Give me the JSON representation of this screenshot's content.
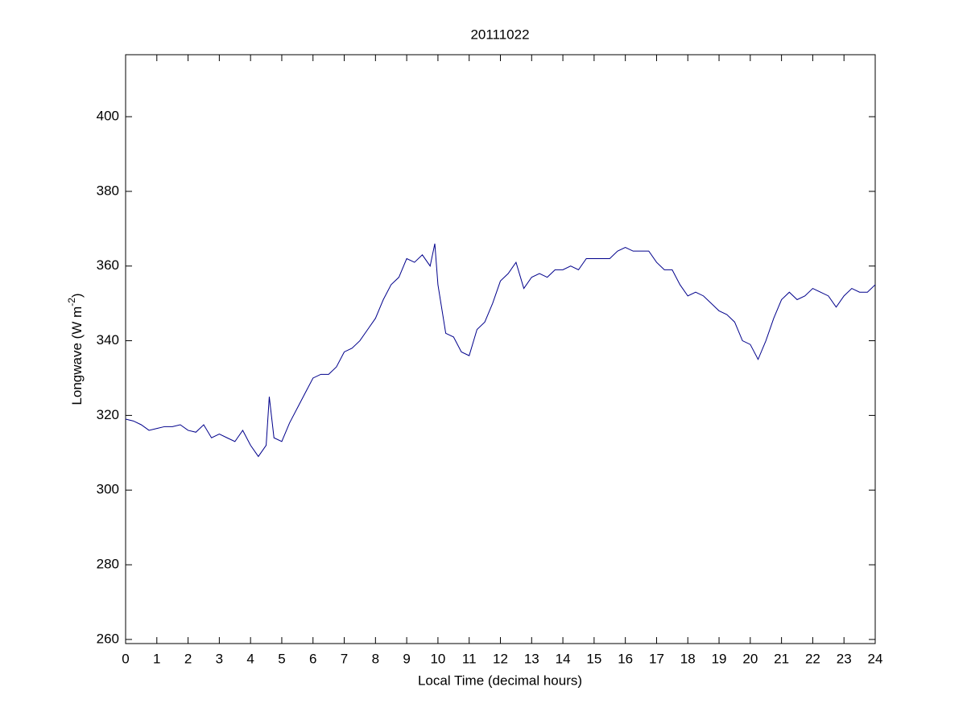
{
  "chart_data": {
    "type": "line",
    "title": "20111022",
    "xlabel": "Local Time (decimal hours)",
    "ylabel": [
      "Longwave (W m",
      "-2",
      ")"
    ],
    "series": [
      {
        "color": "#00008b",
        "x": [
          0,
          0.25,
          0.5,
          0.75,
          1,
          1.25,
          1.5,
          1.75,
          2,
          2.25,
          2.5,
          2.75,
          3,
          3.25,
          3.5,
          3.75,
          4,
          4.25,
          4.5,
          4.6,
          4.75,
          5,
          5.25,
          5.5,
          5.75,
          6,
          6.25,
          6.5,
          6.75,
          7,
          7.25,
          7.5,
          7.75,
          8,
          8.25,
          8.5,
          8.75,
          9,
          9.25,
          9.5,
          9.75,
          9.9,
          10,
          10.25,
          10.5,
          10.75,
          11,
          11.25,
          11.5,
          11.75,
          12,
          12.25,
          12.5,
          12.75,
          13,
          13.25,
          13.5,
          13.75,
          14,
          14.25,
          14.5,
          14.75,
          15,
          15.25,
          15.5,
          15.75,
          16,
          16.25,
          16.5,
          16.75,
          17,
          17.25,
          17.5,
          17.75,
          18,
          18.25,
          18.5,
          18.75,
          19,
          19.25,
          19.5,
          19.75,
          20,
          20.25,
          20.5,
          20.75,
          21,
          21.25,
          21.5,
          21.75,
          22,
          22.25,
          22.5,
          22.75,
          23,
          23.25,
          23.5,
          23.75,
          24
        ],
        "values": [
          319,
          318.5,
          317.5,
          316,
          316.5,
          317,
          317,
          317.5,
          316,
          315.5,
          317.5,
          314,
          315,
          314,
          313,
          316,
          312,
          309,
          312,
          325,
          314,
          313,
          318,
          322,
          326,
          330,
          331,
          331,
          333,
          337,
          338,
          340,
          343,
          346,
          351,
          355,
          357,
          362,
          361,
          363,
          360,
          366,
          355,
          342,
          341,
          337,
          336,
          343,
          345,
          350,
          356,
          358,
          361,
          354,
          357,
          358,
          357,
          359,
          359,
          360,
          359,
          362,
          362,
          362,
          362,
          364,
          365,
          364,
          364,
          364,
          361,
          359,
          359,
          355,
          352,
          353,
          352,
          350,
          348,
          347,
          345,
          340,
          339,
          335,
          340,
          346,
          351,
          353,
          351,
          352,
          354,
          353,
          352,
          349,
          352,
          354,
          353,
          353,
          355
        ]
      }
    ],
    "xlim": [
      0,
      24
    ],
    "xticks": [
      0,
      1,
      2,
      3,
      4,
      5,
      6,
      7,
      8,
      9,
      10,
      11,
      12,
      13,
      14,
      15,
      16,
      17,
      18,
      19,
      20,
      21,
      22,
      23,
      24
    ],
    "ylim": [
      258.9,
      416.6
    ],
    "yticks": [
      260,
      280,
      300,
      320,
      340,
      360,
      380,
      400
    ]
  }
}
